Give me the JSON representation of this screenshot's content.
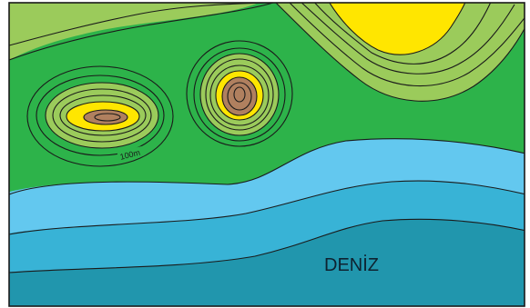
{
  "map": {
    "contour_label": "100m",
    "sea_label": "DENİZ",
    "colors": {
      "frame": "#1a1a1a",
      "land_low": "#2db34a",
      "land_mid": "#9bcb5b",
      "land_high": "#ffe600",
      "land_peak": "#b0805f",
      "sea_shallow": "#63c8ef",
      "sea_mid": "#38b3d6",
      "sea_deep": "#2196ad"
    }
  }
}
